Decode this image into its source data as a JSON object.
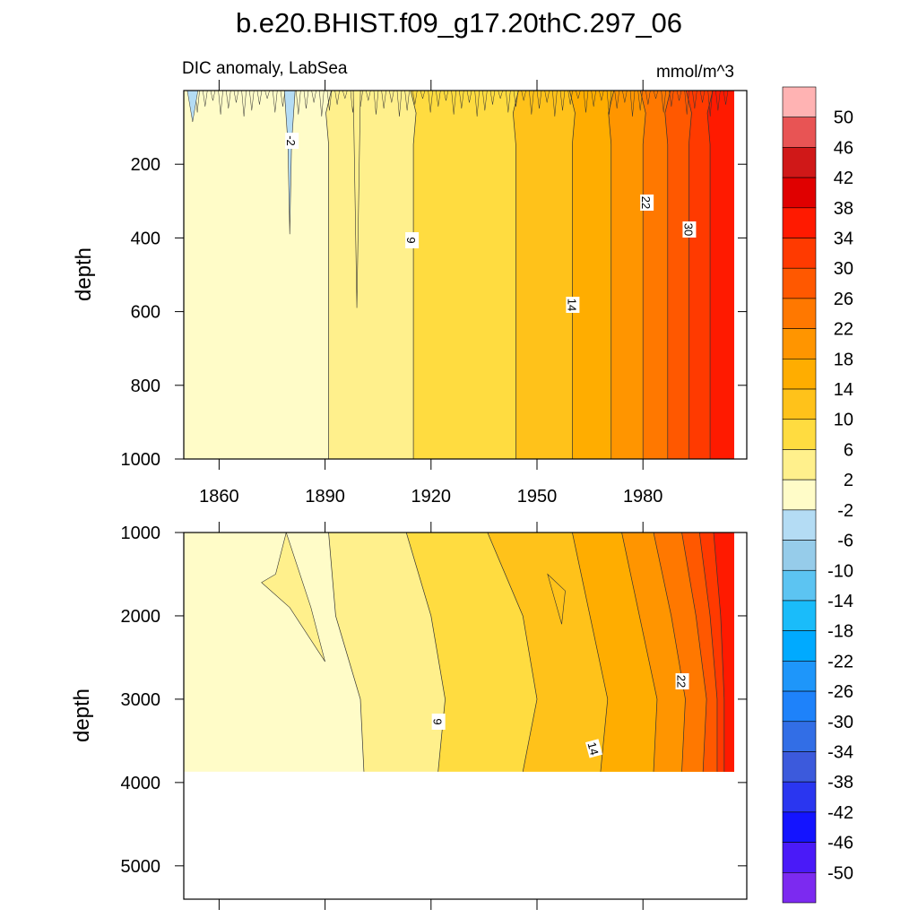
{
  "chart_data": {
    "type": "heatmap",
    "title": "b.e20.BHIST.f09_g17.20thC.297_06",
    "subtitle_left": "DIC anomaly, LabSea",
    "subtitle_right": "mmol/m^3",
    "x_range": [
      1850,
      2005
    ],
    "x_ticks": [
      "1860",
      "1890",
      "1920",
      "1950",
      "1980"
    ],
    "upper_panel": {
      "ylabel": "depth",
      "ylim": [
        0,
        1000
      ],
      "y_ticks": [
        "200",
        "400",
        "600",
        "800",
        "1000"
      ],
      "contour_labels": [
        "-2",
        "9",
        "14",
        "22",
        "30"
      ],
      "boundaries": [
        {
          "year": 1891,
          "value": 2
        },
        {
          "year": 1915,
          "value": 6
        },
        {
          "year": 1944,
          "value": 10
        },
        {
          "year": 1960,
          "value": 14
        },
        {
          "year": 1971,
          "value": 18
        },
        {
          "year": 1980,
          "value": 22
        },
        {
          "year": 1987,
          "value": 26
        },
        {
          "year": 1993,
          "value": 30
        },
        {
          "year": 1999,
          "value": 34
        }
      ]
    },
    "lower_panel": {
      "ylabel": "depth",
      "ylim": [
        1000,
        5400
      ],
      "data_bottom_depth": 3870,
      "y_ticks": [
        "1000",
        "2000",
        "3000",
        "4000",
        "5000"
      ],
      "contour_labels": [
        "9",
        "14",
        "22"
      ],
      "boundaries": [
        {
          "value": 2,
          "years": [
            1891,
            1893,
            1900,
            1901
          ]
        },
        {
          "value": 6,
          "years": [
            1913,
            1920,
            1924,
            1922
          ]
        },
        {
          "value": 10,
          "years": [
            1936,
            1946,
            1950,
            1946
          ]
        },
        {
          "value": 14,
          "years": [
            1960,
            1965,
            1970,
            1968
          ]
        },
        {
          "value": 18,
          "years": [
            1974,
            1979,
            1984,
            1983
          ]
        },
        {
          "value": 22,
          "years": [
            1983,
            1988,
            1992,
            1991
          ]
        },
        {
          "value": 26,
          "years": [
            1991,
            1995,
            1998,
            1997
          ]
        },
        {
          "value": 30,
          "years": [
            1996,
            1999,
            2001,
            2001
          ]
        },
        {
          "value": 34,
          "years": [
            2000,
            2002,
            2003,
            2003
          ]
        }
      ]
    },
    "colorbar": {
      "labels": [
        "50",
        "46",
        "42",
        "38",
        "34",
        "30",
        "26",
        "22",
        "18",
        "14",
        "10",
        "6",
        "2",
        "-2",
        "-6",
        "-10",
        "-14",
        "-18",
        "-22",
        "-26",
        "-30",
        "-34",
        "-38",
        "-42",
        "-46",
        "-50"
      ],
      "colors": [
        "#FFB3B3",
        "#E85454",
        "#D01818",
        "#E00000",
        "#FF1A00",
        "#FF3A00",
        "#FF5800",
        "#FF7800",
        "#FF9500",
        "#FFAD00",
        "#FFC21A",
        "#FFDC40",
        "#FFF08C",
        "#FFFCC8",
        "#B4DCF4",
        "#96CCEA",
        "#5CC4F2",
        "#1ABCFA",
        "#00AAFF",
        "#1E96FA",
        "#1E82FA",
        "#326EE6",
        "#3C5ADC",
        "#2A36F0",
        "#1414FF",
        "#4A1AF8",
        "#7C2AF0"
      ]
    }
  }
}
